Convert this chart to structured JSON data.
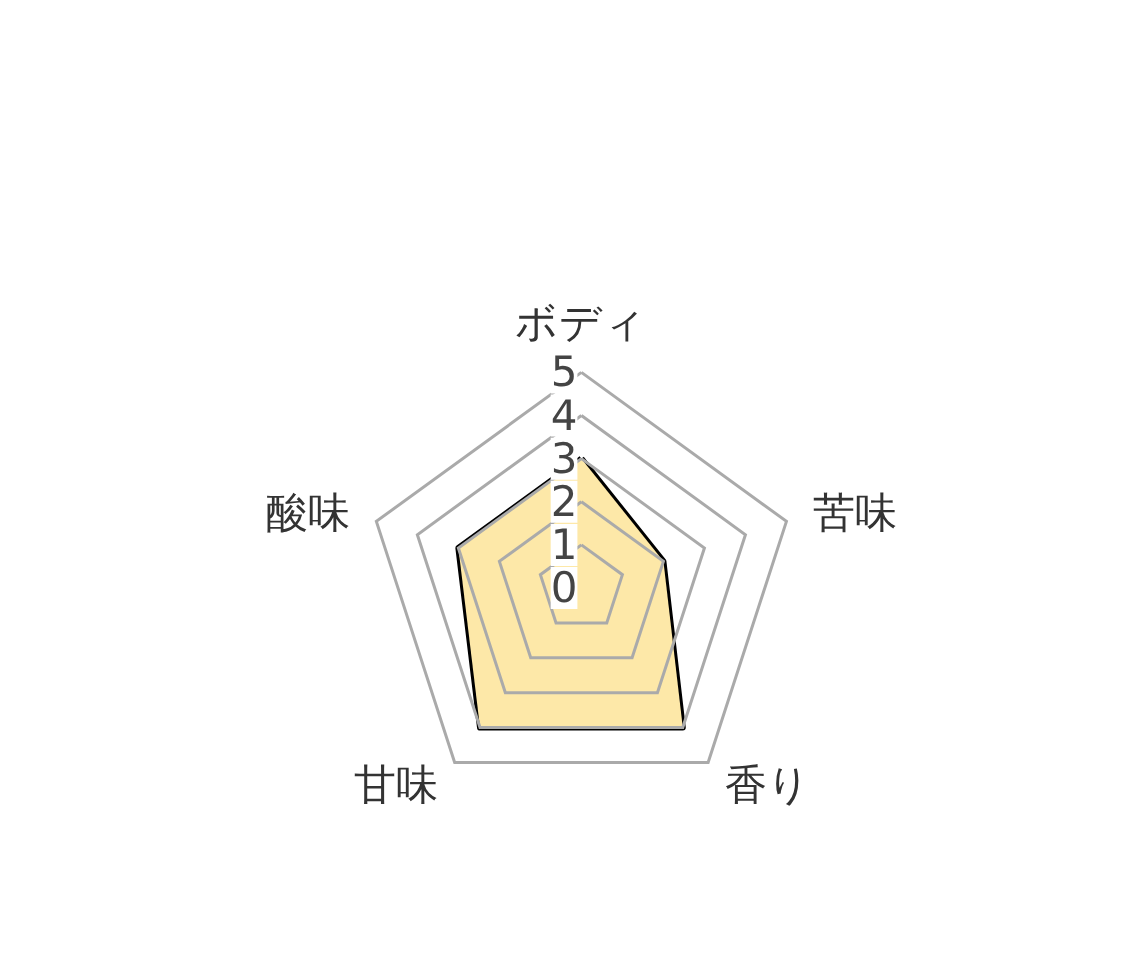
{
  "chart_data": {
    "type": "radar",
    "categories": [
      "ボディ",
      "苦味",
      "香り",
      "甘味",
      "酸味"
    ],
    "series": [
      {
        "color": "#fde8a8",
        "values": [
          3,
          2,
          4,
          4,
          3
        ]
      }
    ],
    "ylim": [
      0,
      5
    ],
    "yticks": [
      0,
      1,
      2,
      3,
      4,
      5
    ],
    "grid": true,
    "marker": "none"
  }
}
